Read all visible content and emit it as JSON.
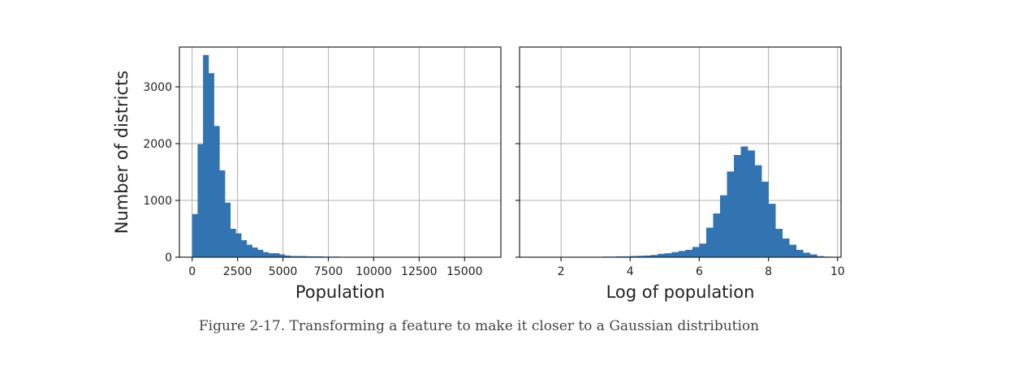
{
  "caption": "Figure 2-17. Transforming a feature to make it closer to a Gaussian distribution",
  "chart_data": [
    {
      "type": "bar",
      "xlabel": "Population",
      "ylabel": "Number of districts",
      "xlim": [
        -700,
        17000
      ],
      "ylim": [
        0,
        3700
      ],
      "xticks": [
        0,
        2500,
        5000,
        7500,
        10000,
        12500,
        15000
      ],
      "xtick_labels": [
        "0",
        "2500",
        "5000",
        "7500",
        "10000",
        "12500",
        "15000"
      ],
      "yticks": [
        0,
        1000,
        2000,
        3000
      ],
      "ytick_labels": [
        "0",
        "1000",
        "2000",
        "3000"
      ],
      "grid": true,
      "bar_color": "#3274b2",
      "bin_width": 300,
      "bins_x": [
        0,
        300,
        600,
        900,
        1200,
        1500,
        1800,
        2100,
        2400,
        2700,
        3000,
        3300,
        3600,
        3900,
        4200,
        4500,
        4800,
        5100,
        5400,
        5700,
        6000,
        6300,
        6600,
        6900,
        7200,
        7500,
        7800
      ],
      "values": [
        760,
        1990,
        3560,
        3240,
        2310,
        1530,
        960,
        500,
        420,
        300,
        220,
        170,
        130,
        90,
        70,
        70,
        50,
        30,
        20,
        20,
        20,
        15,
        15,
        15,
        10,
        10,
        10
      ]
    },
    {
      "type": "bar",
      "xlabel": "Log of population",
      "ylabel": "",
      "xlim": [
        0.8,
        10.1
      ],
      "ylim": [
        0,
        3700
      ],
      "xticks": [
        2,
        4,
        6,
        8,
        10
      ],
      "xtick_labels": [
        "2",
        "4",
        "6",
        "8",
        "10"
      ],
      "yticks": [
        0,
        1000,
        2000,
        3000
      ],
      "ytick_labels": [],
      "grid": true,
      "bar_color": "#3274b2",
      "bin_width": 0.2,
      "bins_x": [
        3.2,
        3.4,
        3.6,
        3.8,
        4.0,
        4.2,
        4.4,
        4.6,
        4.8,
        5.0,
        5.2,
        5.4,
        5.6,
        5.8,
        6.0,
        6.2,
        6.4,
        6.6,
        6.8,
        7.0,
        7.2,
        7.4,
        7.6,
        7.8,
        8.0,
        8.2,
        8.4,
        8.6,
        8.8,
        9.0,
        9.2,
        9.4,
        9.6
      ],
      "values": [
        10,
        10,
        15,
        15,
        20,
        25,
        30,
        40,
        60,
        70,
        90,
        110,
        130,
        180,
        240,
        520,
        770,
        1090,
        1510,
        1800,
        1950,
        1880,
        1620,
        1330,
        940,
        500,
        330,
        220,
        130,
        80,
        50,
        20,
        10
      ]
    }
  ]
}
